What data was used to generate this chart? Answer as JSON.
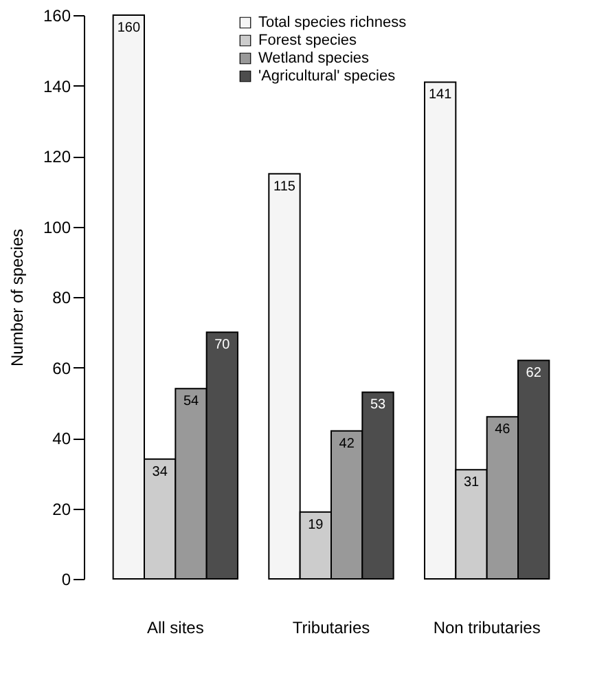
{
  "chart_data": {
    "type": "bar",
    "ylabel": "Number of species",
    "categories": [
      "All sites",
      "Tributaries",
      "Non tributaries"
    ],
    "series": [
      {
        "name": "Total species richness",
        "color": "#f5f5f5",
        "values": [
          160,
          115,
          141
        ]
      },
      {
        "name": "Forest species",
        "color": "#cccccc",
        "values": [
          34,
          19,
          31
        ]
      },
      {
        "name": "Wetland species",
        "color": "#999999",
        "values": [
          54,
          42,
          46
        ]
      },
      {
        "name": "'Agricultural' species",
        "color": "#4d4d4d",
        "values": [
          70,
          53,
          62
        ]
      }
    ],
    "ylim": [
      0,
      160
    ],
    "yticks": [
      0,
      20,
      40,
      60,
      80,
      100,
      120,
      140,
      160
    ],
    "data_labels": true,
    "grid": false,
    "legend": "top"
  }
}
